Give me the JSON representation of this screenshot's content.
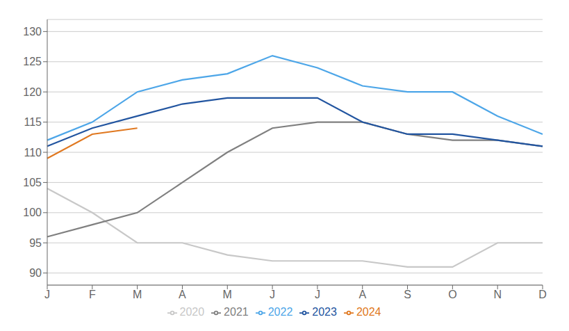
{
  "chart_data": {
    "type": "line",
    "categories": [
      "J",
      "F",
      "M",
      "A",
      "M",
      "J",
      "J",
      "A",
      "S",
      "O",
      "N",
      "D"
    ],
    "series": [
      {
        "name": "2020",
        "color": "#c8c8c8",
        "values": [
          104,
          100,
          95,
          95,
          93,
          92,
          92,
          92,
          91,
          91,
          95,
          95
        ]
      },
      {
        "name": "2021",
        "color": "#808080",
        "values": [
          96,
          98,
          100,
          105,
          110,
          114,
          115,
          115,
          113,
          112,
          112,
          111
        ]
      },
      {
        "name": "2022",
        "color": "#4da6e8",
        "values": [
          112,
          115,
          120,
          122,
          123,
          126,
          124,
          121,
          120,
          120,
          116,
          113
        ]
      },
      {
        "name": "2023",
        "color": "#2255a0",
        "values": [
          111,
          114,
          116,
          118,
          119,
          119,
          119,
          115,
          113,
          113,
          112,
          111
        ]
      },
      {
        "name": "2024",
        "color": "#e07820",
        "values": [
          109,
          113,
          114,
          null,
          null,
          null,
          null,
          null,
          null,
          null,
          null,
          null
        ]
      }
    ],
    "ylim": [
      88,
      132
    ],
    "yticks": [
      90,
      95,
      100,
      105,
      110,
      115,
      120,
      125,
      130
    ],
    "grid": true,
    "legend": "bottom"
  }
}
